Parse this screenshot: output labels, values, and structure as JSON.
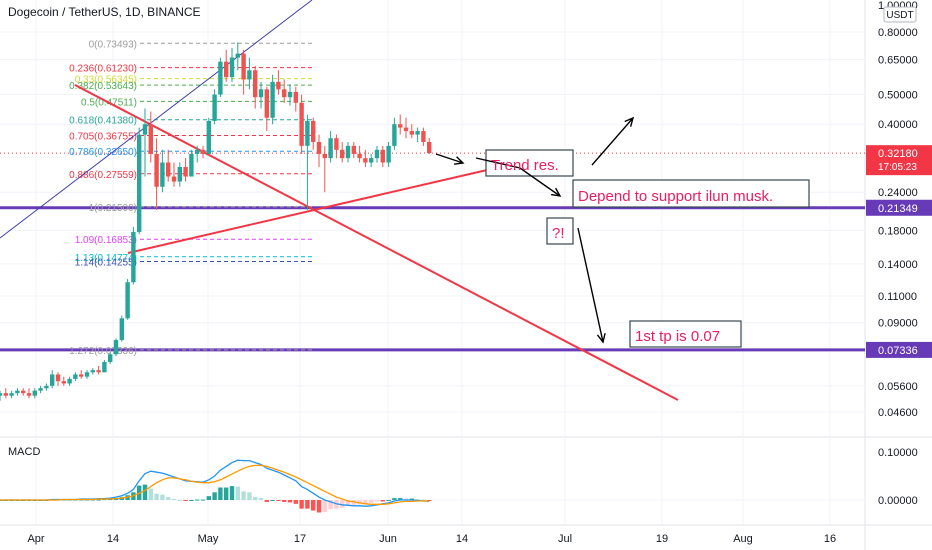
{
  "header": {
    "title": "Dogecoin / TetherUS, 1D, BINANCE",
    "currency_badge": "USDT",
    "scale_top": "1.00000"
  },
  "colors": {
    "up": "#26a69a",
    "down": "#ef5350",
    "level": "#673ab7",
    "trendline": "#f23645",
    "channel": "#3f3fa8",
    "macd_line": "#2196f3",
    "signal_line": "#ff9800",
    "annotation_text": "#e91e63",
    "annotation_box": "#37474f",
    "price_badge": "#f23645",
    "level_badge": "#673ab7"
  },
  "chart_data": [
    {
      "type": "candlestick",
      "title": "Dogecoin / TetherUS, 1D, BINANCE",
      "scale": "log",
      "price_axis_ticks": [
        "0.80000",
        "0.65000",
        "0.50000",
        "0.40000",
        "0.32180",
        "0.24000",
        "0.21349",
        "0.18000",
        "0.14000",
        "0.11000",
        "0.09000",
        "0.07336",
        "0.05600",
        "0.04600"
      ],
      "time_axis_ticks": [
        "Apr",
        "14",
        "May",
        "17",
        "Jun",
        "14",
        "Jul",
        "19",
        "Aug",
        "16"
      ],
      "current_price": "0.32180",
      "countdown": "17:05:23",
      "horizontal_levels": [
        0.21349,
        0.07336
      ],
      "fib_levels": [
        {
          "label": "0(0.73493)",
          "value": 0.73493,
          "color": "#9e9e9e"
        },
        {
          "label": "0.236(0.61230)",
          "value": 0.6123,
          "color": "#f23645"
        },
        {
          "label": "0.33(0.56345)",
          "value": 0.56345,
          "color": "#cddc39"
        },
        {
          "label": "0.382(0.53643)",
          "value": 0.53643,
          "color": "#4caf50"
        },
        {
          "label": "0.5(0.47511)",
          "value": 0.47511,
          "color": "#4caf50"
        },
        {
          "label": "0.618(0.41380)",
          "value": 0.4138,
          "color": "#26a69a"
        },
        {
          "label": "0.705(0.36755)",
          "value": 0.36755,
          "color": "#f23645"
        },
        {
          "label": "0.786(0.32650)",
          "value": 0.3265,
          "color": "#2196f3"
        },
        {
          "label": "0.886(0.27559)",
          "value": 0.27559,
          "color": "#f23645"
        },
        {
          "label": "1(0.21500)",
          "value": 0.215,
          "color": "#9e9e9e"
        },
        {
          "label": "1.09(0.16853)",
          "value": 0.16853,
          "color": "#e040fb"
        },
        {
          "label": "1.13(0.14774)",
          "value": 0.14774,
          "color": "#00bcd4"
        },
        {
          "label": "1.14(0.14255)",
          "value": 0.14255,
          "color": "#3f51b5"
        },
        {
          "label": "1.272(0.07336)",
          "value": 0.07336,
          "color": "#9e9e9e"
        }
      ],
      "candles": [
        {
          "o": 0.052,
          "h": 0.054,
          "l": 0.05,
          "c": 0.053
        },
        {
          "o": 0.053,
          "h": 0.055,
          "l": 0.051,
          "c": 0.052
        },
        {
          "o": 0.052,
          "h": 0.054,
          "l": 0.051,
          "c": 0.053
        },
        {
          "o": 0.053,
          "h": 0.055,
          "l": 0.052,
          "c": 0.054
        },
        {
          "o": 0.054,
          "h": 0.055,
          "l": 0.052,
          "c": 0.053
        },
        {
          "o": 0.053,
          "h": 0.055,
          "l": 0.051,
          "c": 0.052
        },
        {
          "o": 0.052,
          "h": 0.055,
          "l": 0.051,
          "c": 0.054
        },
        {
          "o": 0.054,
          "h": 0.056,
          "l": 0.053,
          "c": 0.055
        },
        {
          "o": 0.055,
          "h": 0.057,
          "l": 0.054,
          "c": 0.056
        },
        {
          "o": 0.056,
          "h": 0.063,
          "l": 0.055,
          "c": 0.061
        },
        {
          "o": 0.061,
          "h": 0.062,
          "l": 0.056,
          "c": 0.058
        },
        {
          "o": 0.058,
          "h": 0.06,
          "l": 0.056,
          "c": 0.057
        },
        {
          "o": 0.057,
          "h": 0.06,
          "l": 0.056,
          "c": 0.059
        },
        {
          "o": 0.059,
          "h": 0.062,
          "l": 0.058,
          "c": 0.061
        },
        {
          "o": 0.061,
          "h": 0.063,
          "l": 0.059,
          "c": 0.06
        },
        {
          "o": 0.06,
          "h": 0.063,
          "l": 0.059,
          "c": 0.062
        },
        {
          "o": 0.062,
          "h": 0.064,
          "l": 0.061,
          "c": 0.063
        },
        {
          "o": 0.063,
          "h": 0.065,
          "l": 0.061,
          "c": 0.062
        },
        {
          "o": 0.062,
          "h": 0.068,
          "l": 0.062,
          "c": 0.067
        },
        {
          "o": 0.067,
          "h": 0.072,
          "l": 0.066,
          "c": 0.071
        },
        {
          "o": 0.071,
          "h": 0.08,
          "l": 0.07,
          "c": 0.079
        },
        {
          "o": 0.079,
          "h": 0.095,
          "l": 0.078,
          "c": 0.093
        },
        {
          "o": 0.093,
          "h": 0.125,
          "l": 0.092,
          "c": 0.122
        },
        {
          "o": 0.122,
          "h": 0.185,
          "l": 0.12,
          "c": 0.178
        },
        {
          "o": 0.178,
          "h": 0.39,
          "l": 0.175,
          "c": 0.37
        },
        {
          "o": 0.37,
          "h": 0.45,
          "l": 0.27,
          "c": 0.4
        },
        {
          "o": 0.4,
          "h": 0.44,
          "l": 0.3,
          "c": 0.32
        },
        {
          "o": 0.32,
          "h": 0.36,
          "l": 0.21,
          "c": 0.25
        },
        {
          "o": 0.25,
          "h": 0.33,
          "l": 0.24,
          "c": 0.3
        },
        {
          "o": 0.3,
          "h": 0.33,
          "l": 0.26,
          "c": 0.27
        },
        {
          "o": 0.27,
          "h": 0.3,
          "l": 0.25,
          "c": 0.26
        },
        {
          "o": 0.26,
          "h": 0.3,
          "l": 0.25,
          "c": 0.29
        },
        {
          "o": 0.29,
          "h": 0.31,
          "l": 0.26,
          "c": 0.27
        },
        {
          "o": 0.27,
          "h": 0.33,
          "l": 0.27,
          "c": 0.32
        },
        {
          "o": 0.32,
          "h": 0.34,
          "l": 0.3,
          "c": 0.33
        },
        {
          "o": 0.33,
          "h": 0.34,
          "l": 0.31,
          "c": 0.32
        },
        {
          "o": 0.32,
          "h": 0.42,
          "l": 0.32,
          "c": 0.41
        },
        {
          "o": 0.41,
          "h": 0.52,
          "l": 0.4,
          "c": 0.5
        },
        {
          "o": 0.5,
          "h": 0.66,
          "l": 0.49,
          "c": 0.64
        },
        {
          "o": 0.64,
          "h": 0.7,
          "l": 0.55,
          "c": 0.57
        },
        {
          "o": 0.57,
          "h": 0.71,
          "l": 0.55,
          "c": 0.66
        },
        {
          "o": 0.66,
          "h": 0.74,
          "l": 0.6,
          "c": 0.68
        },
        {
          "o": 0.68,
          "h": 0.7,
          "l": 0.5,
          "c": 0.56
        },
        {
          "o": 0.56,
          "h": 0.66,
          "l": 0.52,
          "c": 0.6
        },
        {
          "o": 0.6,
          "h": 0.62,
          "l": 0.45,
          "c": 0.49
        },
        {
          "o": 0.49,
          "h": 0.55,
          "l": 0.45,
          "c": 0.52
        },
        {
          "o": 0.52,
          "h": 0.53,
          "l": 0.38,
          "c": 0.42
        },
        {
          "o": 0.42,
          "h": 0.58,
          "l": 0.4,
          "c": 0.55
        },
        {
          "o": 0.55,
          "h": 0.6,
          "l": 0.5,
          "c": 0.52
        },
        {
          "o": 0.52,
          "h": 0.56,
          "l": 0.47,
          "c": 0.49
        },
        {
          "o": 0.49,
          "h": 0.54,
          "l": 0.46,
          "c": 0.51
        },
        {
          "o": 0.51,
          "h": 0.53,
          "l": 0.44,
          "c": 0.47
        },
        {
          "o": 0.47,
          "h": 0.5,
          "l": 0.32,
          "c": 0.34
        },
        {
          "o": 0.34,
          "h": 0.43,
          "l": 0.21,
          "c": 0.41
        },
        {
          "o": 0.41,
          "h": 0.42,
          "l": 0.33,
          "c": 0.35
        },
        {
          "o": 0.35,
          "h": 0.37,
          "l": 0.29,
          "c": 0.32
        },
        {
          "o": 0.32,
          "h": 0.34,
          "l": 0.24,
          "c": 0.31
        },
        {
          "o": 0.31,
          "h": 0.38,
          "l": 0.3,
          "c": 0.36
        },
        {
          "o": 0.36,
          "h": 0.37,
          "l": 0.31,
          "c": 0.33
        },
        {
          "o": 0.33,
          "h": 0.35,
          "l": 0.3,
          "c": 0.31
        },
        {
          "o": 0.31,
          "h": 0.35,
          "l": 0.3,
          "c": 0.34
        },
        {
          "o": 0.34,
          "h": 0.35,
          "l": 0.31,
          "c": 0.32
        },
        {
          "o": 0.32,
          "h": 0.34,
          "l": 0.3,
          "c": 0.31
        },
        {
          "o": 0.31,
          "h": 0.33,
          "l": 0.29,
          "c": 0.3
        },
        {
          "o": 0.3,
          "h": 0.32,
          "l": 0.29,
          "c": 0.31
        },
        {
          "o": 0.31,
          "h": 0.34,
          "l": 0.3,
          "c": 0.33
        },
        {
          "o": 0.33,
          "h": 0.34,
          "l": 0.29,
          "c": 0.3
        },
        {
          "o": 0.3,
          "h": 0.35,
          "l": 0.29,
          "c": 0.34
        },
        {
          "o": 0.34,
          "h": 0.42,
          "l": 0.33,
          "c": 0.4
        },
        {
          "o": 0.4,
          "h": 0.43,
          "l": 0.37,
          "c": 0.39
        },
        {
          "o": 0.39,
          "h": 0.42,
          "l": 0.36,
          "c": 0.38
        },
        {
          "o": 0.38,
          "h": 0.4,
          "l": 0.36,
          "c": 0.37
        },
        {
          "o": 0.37,
          "h": 0.39,
          "l": 0.35,
          "c": 0.38
        },
        {
          "o": 0.38,
          "h": 0.39,
          "l": 0.34,
          "c": 0.35
        },
        {
          "o": 0.35,
          "h": 0.36,
          "l": 0.32,
          "c": 0.322
        }
      ]
    },
    {
      "type": "bar",
      "title": "MACD",
      "axis_ticks": [
        "0.10000",
        "0.00000"
      ],
      "series": [
        {
          "name": "",
          "kind": "histogram",
          "values": [
            0.0,
            0.0,
            0.0,
            0.0,
            0.0,
            0.0,
            0.0,
            0.0,
            0.0,
            0.001,
            0.001,
            0.001,
            0.001,
            0.001,
            0.001,
            0.001,
            0.001,
            0.001,
            0.002,
            0.002,
            0.004,
            0.006,
            0.01,
            0.016,
            0.03,
            0.032,
            0.024,
            0.013,
            0.011,
            0.006,
            0.002,
            0.0,
            -0.002,
            0.0,
            0.001,
            0.001,
            0.008,
            0.016,
            0.026,
            0.026,
            0.029,
            0.028,
            0.018,
            0.016,
            0.006,
            0.004,
            -0.004,
            0.0,
            -0.001,
            -0.004,
            -0.005,
            -0.008,
            -0.018,
            -0.018,
            -0.022,
            -0.026,
            -0.025,
            -0.019,
            -0.018,
            -0.016,
            -0.012,
            -0.01,
            -0.009,
            -0.008,
            -0.006,
            -0.003,
            -0.003,
            0.0,
            0.004,
            0.004,
            0.003,
            0.003,
            0.002,
            0.001,
            -0.001
          ]
        },
        {
          "name": "",
          "kind": "line",
          "values": [
            0.0,
            0.0,
            0.0,
            0.0,
            0.0,
            0.0,
            0.0,
            0.0,
            0.0,
            0.001,
            0.001,
            0.001,
            0.001,
            0.001,
            0.002,
            0.002,
            0.002,
            0.003,
            0.003,
            0.004,
            0.006,
            0.009,
            0.014,
            0.022,
            0.04,
            0.055,
            0.06,
            0.058,
            0.056,
            0.052,
            0.048,
            0.044,
            0.04,
            0.039,
            0.038,
            0.037,
            0.042,
            0.05,
            0.062,
            0.07,
            0.078,
            0.083,
            0.082,
            0.082,
            0.078,
            0.074,
            0.066,
            0.062,
            0.058,
            0.052,
            0.046,
            0.04,
            0.028,
            0.022,
            0.014,
            0.006,
            0.0,
            -0.004,
            -0.008,
            -0.01,
            -0.011,
            -0.012,
            -0.012,
            -0.013,
            -0.012,
            -0.01,
            -0.008,
            -0.006,
            -0.002,
            0.0,
            0.0,
            0.0,
            -0.001,
            -0.002,
            -0.003
          ]
        },
        {
          "name": "",
          "kind": "line",
          "values": [
            0.0,
            0.0,
            0.0,
            0.0,
            0.0,
            0.0,
            0.0,
            0.0,
            0.0,
            0.0,
            0.0,
            0.001,
            0.001,
            0.001,
            0.001,
            0.001,
            0.001,
            0.002,
            0.002,
            0.002,
            0.003,
            0.004,
            0.006,
            0.009,
            0.014,
            0.02,
            0.028,
            0.036,
            0.042,
            0.046,
            0.046,
            0.044,
            0.042,
            0.039,
            0.037,
            0.036,
            0.036,
            0.038,
            0.042,
            0.048,
            0.054,
            0.06,
            0.066,
            0.07,
            0.072,
            0.072,
            0.07,
            0.066,
            0.062,
            0.058,
            0.053,
            0.048,
            0.042,
            0.036,
            0.03,
            0.024,
            0.018,
            0.012,
            0.006,
            0.002,
            -0.002,
            -0.004,
            -0.006,
            -0.008,
            -0.009,
            -0.009,
            -0.009,
            -0.008,
            -0.006,
            -0.004,
            -0.003,
            -0.003,
            -0.002,
            -0.002,
            -0.002
          ]
        }
      ]
    }
  ],
  "annotations": {
    "trend_res": "Trend res.",
    "depend": "Depend to support ilun musk.",
    "question": "?!",
    "tp": "1st tp is 0.07"
  },
  "indicator": {
    "macd_label": "MACD"
  }
}
